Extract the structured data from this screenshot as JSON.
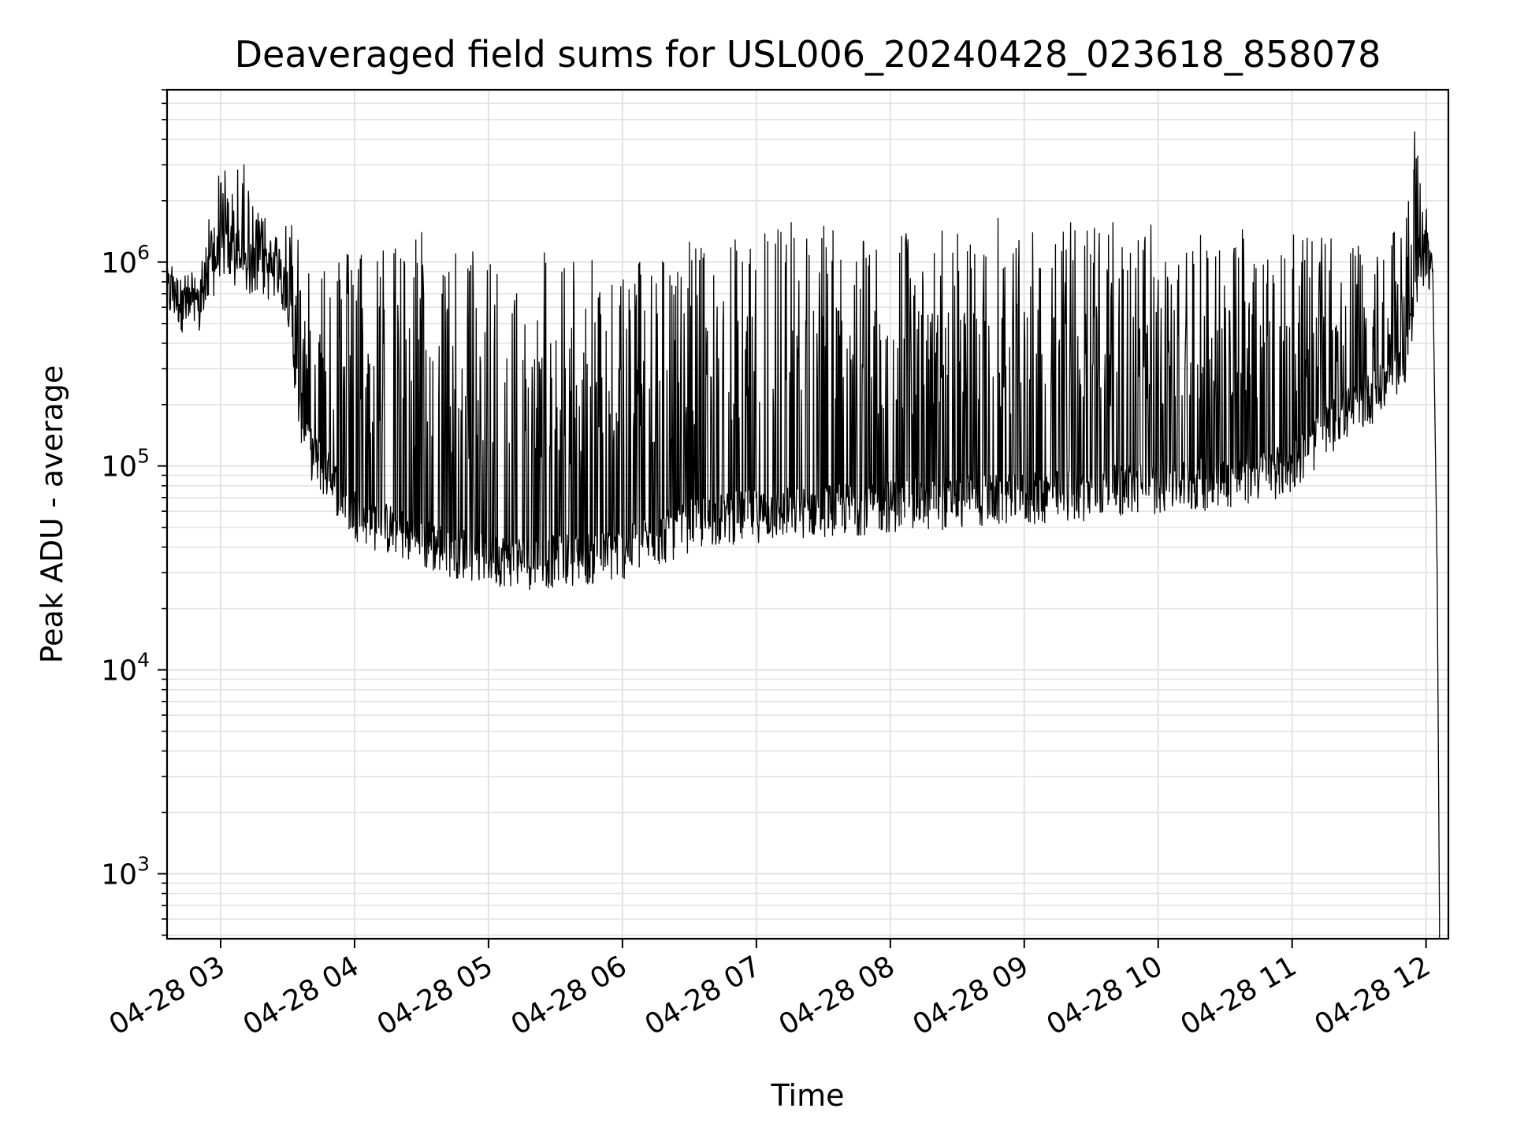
{
  "chart_data": {
    "type": "line",
    "title": "Deaveraged field sums for USL006_20240428_023618_858078",
    "xlabel": "Time",
    "ylabel": "Peak ADU - average",
    "yscale": "log",
    "ylim": [
      480,
      7000000
    ],
    "xlim": [
      "2024-04-28T02:36:00",
      "2024-04-28T12:10:00"
    ],
    "grid": true,
    "line_color": "#000000",
    "grid_color": "#e3e3e3",
    "x_ticks": [
      {
        "value": "2024-04-28T03:00:00",
        "label": "04-28 03"
      },
      {
        "value": "2024-04-28T04:00:00",
        "label": "04-28 04"
      },
      {
        "value": "2024-04-28T05:00:00",
        "label": "04-28 05"
      },
      {
        "value": "2024-04-28T06:00:00",
        "label": "04-28 06"
      },
      {
        "value": "2024-04-28T07:00:00",
        "label": "04-28 07"
      },
      {
        "value": "2024-04-28T08:00:00",
        "label": "04-28 08"
      },
      {
        "value": "2024-04-28T09:00:00",
        "label": "04-28 09"
      },
      {
        "value": "2024-04-28T10:00:00",
        "label": "04-28 10"
      },
      {
        "value": "2024-04-28T11:00:00",
        "label": "04-28 11"
      },
      {
        "value": "2024-04-28T12:00:00",
        "label": "04-28 12"
      }
    ],
    "y_ticks": [
      {
        "value": 1000,
        "base": "10",
        "exp": "3"
      },
      {
        "value": 10000,
        "base": "10",
        "exp": "4"
      },
      {
        "value": 100000,
        "base": "10",
        "exp": "5"
      },
      {
        "value": 1000000,
        "base": "10",
        "exp": "6"
      }
    ],
    "series": [
      {
        "x": [
          "2024-04-28T02:36:00",
          "2024-04-28T02:40:00",
          "2024-04-28T02:44:00",
          "2024-04-28T02:48:00",
          "2024-04-28T02:52:00",
          "2024-04-28T02:56:00",
          "2024-04-28T03:00:00",
          "2024-04-28T03:05:00",
          "2024-04-28T03:10:00",
          "2024-04-28T03:15:00",
          "2024-04-28T03:20:00",
          "2024-04-28T03:25:00",
          "2024-04-28T03:30:00",
          "2024-04-28T03:35:00",
          "2024-04-28T03:40:00",
          "2024-04-28T03:45:00",
          "2024-04-28T03:50:00",
          "2024-04-28T03:55:00",
          "2024-04-28T04:00:00",
          "2024-04-28T04:10:00",
          "2024-04-28T04:20:00",
          "2024-04-28T04:30:00",
          "2024-04-28T04:40:00",
          "2024-04-28T04:50:00",
          "2024-04-28T05:00:00",
          "2024-04-28T05:10:00",
          "2024-04-28T05:20:00",
          "2024-04-28T05:30:00",
          "2024-04-28T05:40:00",
          "2024-04-28T05:50:00",
          "2024-04-28T06:00:00",
          "2024-04-28T06:10:00",
          "2024-04-28T06:20:00",
          "2024-04-28T06:30:00",
          "2024-04-28T06:40:00",
          "2024-04-28T06:50:00",
          "2024-04-28T07:00:00",
          "2024-04-28T07:15:00",
          "2024-04-28T07:30:00",
          "2024-04-28T07:45:00",
          "2024-04-28T08:00:00",
          "2024-04-28T08:15:00",
          "2024-04-28T08:30:00",
          "2024-04-28T08:45:00",
          "2024-04-28T09:00:00",
          "2024-04-28T09:15:00",
          "2024-04-28T09:30:00",
          "2024-04-28T09:45:00",
          "2024-04-28T10:00:00",
          "2024-04-28T10:15:00",
          "2024-04-28T10:30:00",
          "2024-04-28T10:45:00",
          "2024-04-28T11:00:00",
          "2024-04-28T11:10:00",
          "2024-04-28T11:20:00",
          "2024-04-28T11:30:00",
          "2024-04-28T11:40:00",
          "2024-04-28T11:50:00",
          "2024-04-28T11:55:00",
          "2024-04-28T12:00:00",
          "2024-04-28T12:03:00",
          "2024-04-28T12:05:00",
          "2024-04-28T12:06:00"
        ],
        "base": [
          700000,
          680000,
          600000,
          520000,
          620000,
          850000,
          1200000,
          1000000,
          900000,
          950000,
          900000,
          850000,
          750000,
          200000,
          120000,
          100000,
          85000,
          70000,
          60000,
          52000,
          48000,
          42000,
          40000,
          38000,
          36000,
          35000,
          34000,
          35000,
          36000,
          36000,
          38000,
          42000,
          46000,
          52000,
          55000,
          57000,
          58000,
          60000,
          62000,
          63000,
          65000,
          66000,
          68000,
          69000,
          70000,
          72000,
          75000,
          78000,
          80000,
          82000,
          85000,
          90000,
          100000,
          130000,
          170000,
          200000,
          240000,
          320000,
          600000,
          1200000,
          800000,
          30000,
          600
        ],
        "peak": [
          1000000,
          1000000,
          900000,
          900000,
          1100000,
          2000000,
          3500000,
          2500000,
          3200000,
          1800000,
          1900000,
          1700000,
          1700000,
          1500000,
          1300000,
          1100000,
          1200000,
          1100000,
          1300000,
          1200000,
          1400000,
          1500000,
          1300000,
          1100000,
          1400000,
          1000000,
          1300000,
          1200000,
          1100000,
          1000000,
          900000,
          1200000,
          1100000,
          1300000,
          1300000,
          1400000,
          1500000,
          1700000,
          1600000,
          1600000,
          1400000,
          1500000,
          1500000,
          1700000,
          1600000,
          1600000,
          1600000,
          1800000,
          1500000,
          1400000,
          1600000,
          1500000,
          1500000,
          1400000,
          1300000,
          1200000,
          1200000,
          1600000,
          4500000,
          1900000,
          1000000,
          200000,
          600
        ]
      }
    ]
  }
}
